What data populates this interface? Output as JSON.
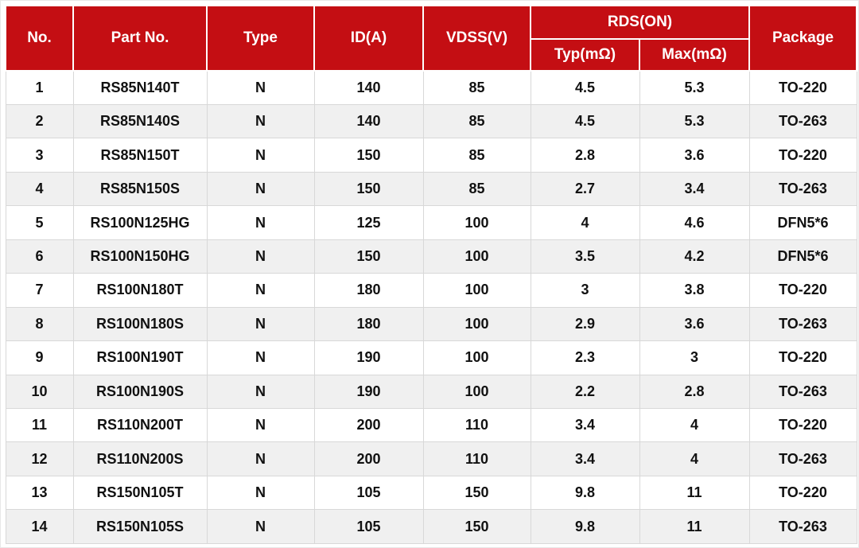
{
  "colors": {
    "header_bg": "#C40E13",
    "header_text": "#FFFFFF",
    "row_bg": "#FFFFFF",
    "row_alt_bg": "#F0F0F0",
    "grid_border": "#D8D8D8",
    "body_text": "#111111"
  },
  "chart_data": {
    "type": "table",
    "header": {
      "no": "No.",
      "part_no": "Part No.",
      "type": "Type",
      "id_a": "ID(A)",
      "vdss_v": "VDSS(V)",
      "rds_on": "RDS(ON)",
      "rds_typ": "Typ(mΩ)",
      "rds_max": "Max(mΩ)",
      "package": "Package"
    },
    "column_keys": [
      "no",
      "part_no",
      "type",
      "id_a",
      "vdss_v",
      "rds_typ",
      "rds_max",
      "package"
    ],
    "rows": [
      [
        "1",
        "RS85N140T",
        "N",
        "140",
        "85",
        "4.5",
        "5.3",
        "TO-220"
      ],
      [
        "2",
        "RS85N140S",
        "N",
        "140",
        "85",
        "4.5",
        "5.3",
        "TO-263"
      ],
      [
        "3",
        "RS85N150T",
        "N",
        "150",
        "85",
        "2.8",
        "3.6",
        "TO-220"
      ],
      [
        "4",
        "RS85N150S",
        "N",
        "150",
        "85",
        "2.7",
        "3.4",
        "TO-263"
      ],
      [
        "5",
        "RS100N125HG",
        "N",
        "125",
        "100",
        "4",
        "4.6",
        "DFN5*6"
      ],
      [
        "6",
        "RS100N150HG",
        "N",
        "150",
        "100",
        "3.5",
        "4.2",
        "DFN5*6"
      ],
      [
        "7",
        "RS100N180T",
        "N",
        "180",
        "100",
        "3",
        "3.8",
        "TO-220"
      ],
      [
        "8",
        "RS100N180S",
        "N",
        "180",
        "100",
        "2.9",
        "3.6",
        "TO-263"
      ],
      [
        "9",
        "RS100N190T",
        "N",
        "190",
        "100",
        "2.3",
        "3",
        "TO-220"
      ],
      [
        "10",
        "RS100N190S",
        "N",
        "190",
        "100",
        "2.2",
        "2.8",
        "TO-263"
      ],
      [
        "11",
        "RS110N200T",
        "N",
        "200",
        "110",
        "3.4",
        "4",
        "TO-220"
      ],
      [
        "12",
        "RS110N200S",
        "N",
        "200",
        "110",
        "3.4",
        "4",
        "TO-263"
      ],
      [
        "13",
        "RS150N105T",
        "N",
        "105",
        "150",
        "9.8",
        "11",
        "TO-220"
      ],
      [
        "14",
        "RS150N105S",
        "N",
        "105",
        "150",
        "9.8",
        "11",
        "TO-263"
      ]
    ]
  }
}
